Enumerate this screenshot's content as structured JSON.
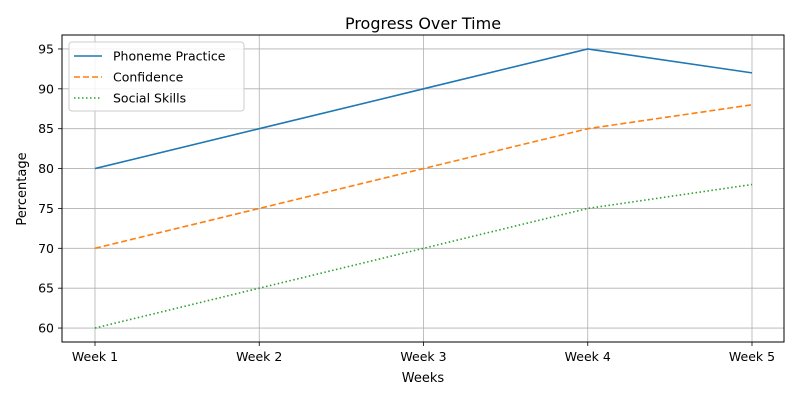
{
  "chart_data": {
    "type": "line",
    "title": "Progress Over Time",
    "xlabel": "Weeks",
    "ylabel": "Percentage",
    "categories": [
      "Week 1",
      "Week 2",
      "Week 3",
      "Week 4",
      "Week 5"
    ],
    "ylim": [
      58.25,
      96.75
    ],
    "yticks": [
      60,
      65,
      70,
      75,
      80,
      85,
      90,
      95
    ],
    "grid": true,
    "legend_position": "top-left",
    "series": [
      {
        "name": "Phoneme Practice",
        "values": [
          80,
          85,
          90,
          95,
          92
        ],
        "color": "#1f77b4",
        "style": "solid"
      },
      {
        "name": "Confidence",
        "values": [
          70,
          75,
          80,
          85,
          88
        ],
        "color": "#ff7f0e",
        "style": "dashed"
      },
      {
        "name": "Social Skills",
        "values": [
          60,
          65,
          70,
          75,
          78
        ],
        "color": "#2ca02c",
        "style": "dotted"
      }
    ]
  }
}
